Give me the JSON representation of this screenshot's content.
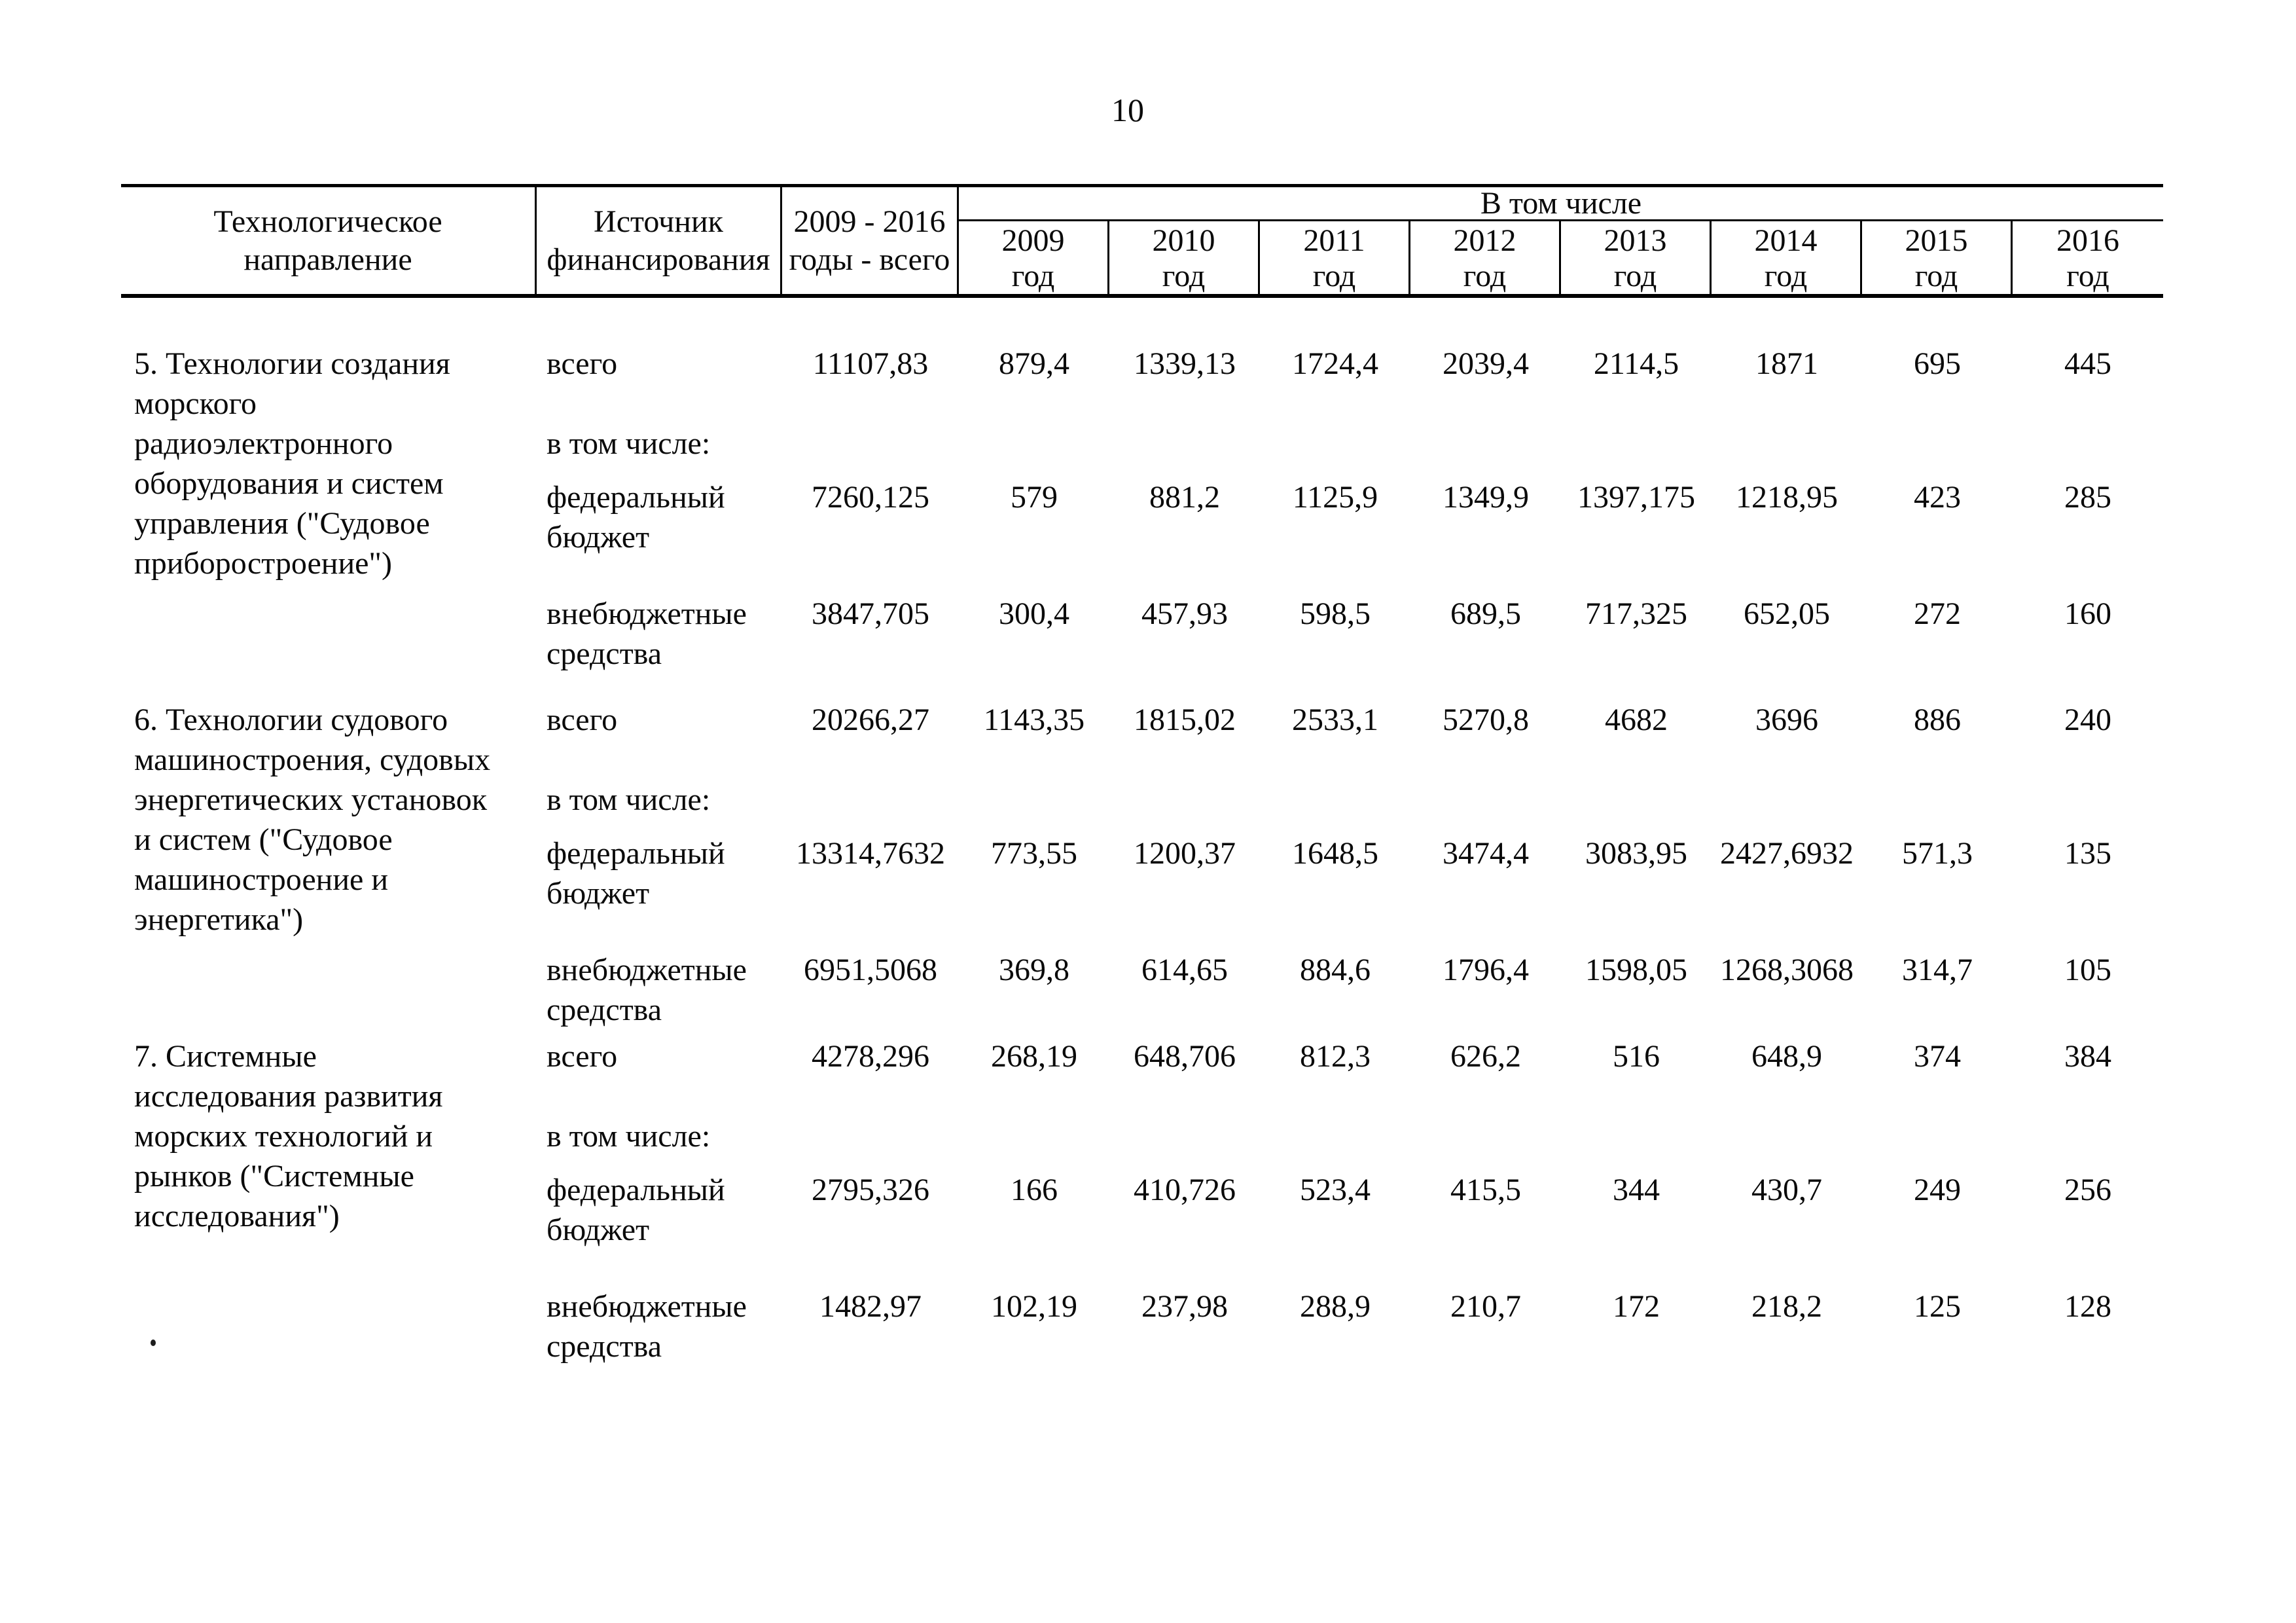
{
  "page": {
    "number": "10"
  },
  "table": {
    "header": {
      "direction": "Технологическое\nнаправление",
      "source": "Источник\nфинансирования",
      "total": "2009 - 2016\nгоды - всего",
      "including": "В том числе",
      "year_word": "год",
      "years": [
        "2009",
        "2010",
        "2011",
        "2012",
        "2013",
        "2014",
        "2015",
        "2016"
      ]
    },
    "including_label": "в том числе:",
    "blocks": [
      {
        "direction": "5. Технологии создания\nморского\nрадиоэлектронного\nоборудования и систем\nуправления (\"Судовое\nприборостроение\")",
        "rows": [
          {
            "label": "всего",
            "total": "11107,83",
            "values": [
              "879,4",
              "1339,13",
              "1724,4",
              "2039,4",
              "2114,5",
              "1871",
              "695",
              "445"
            ]
          },
          {
            "label": "федеральный\nбюджет",
            "total": "7260,125",
            "values": [
              "579",
              "881,2",
              "1125,9",
              "1349,9",
              "1397,175",
              "1218,95",
              "423",
              "285"
            ]
          },
          {
            "label": "внебюджетные\nсредства",
            "total": "3847,705",
            "values": [
              "300,4",
              "457,93",
              "598,5",
              "689,5",
              "717,325",
              "652,05",
              "272",
              "160"
            ]
          }
        ]
      },
      {
        "direction": "6. Технологии судового\nмашиностроения, судовых\nэнергетических установок\nи систем (\"Судовое\nмашиностроение и\nэнергетика\")",
        "rows": [
          {
            "label": "всего",
            "total": "20266,27",
            "values": [
              "1143,35",
              "1815,02",
              "2533,1",
              "5270,8",
              "4682",
              "3696",
              "886",
              "240"
            ]
          },
          {
            "label": "федеральный\nбюджет",
            "total": "13314,7632",
            "values": [
              "773,55",
              "1200,37",
              "1648,5",
              "3474,4",
              "3083,95",
              "2427,6932",
              "571,3",
              "135"
            ]
          },
          {
            "label": "внебюджетные\nсредства",
            "total": "6951,5068",
            "values": [
              "369,8",
              "614,65",
              "884,6",
              "1796,4",
              "1598,05",
              "1268,3068",
              "314,7",
              "105"
            ]
          }
        ]
      },
      {
        "direction": "7. Системные\nисследования развития\nморских технологий и\nрынков (\"Системные\nисследования\")",
        "rows": [
          {
            "label": "всего",
            "total": "4278,296",
            "values": [
              "268,19",
              "648,706",
              "812,3",
              "626,2",
              "516",
              "648,9",
              "374",
              "384"
            ]
          },
          {
            "label": "федеральный\nбюджет",
            "total": "2795,326",
            "values": [
              "166",
              "410,726",
              "523,4",
              "415,5",
              "344",
              "430,7",
              "249",
              "256"
            ]
          },
          {
            "label": "внебюджетные\nсредства",
            "total": "1482,97",
            "values": [
              "102,19",
              "237,98",
              "288,9",
              "210,7",
              "172",
              "218,2",
              "125",
              "128"
            ]
          }
        ]
      }
    ]
  }
}
